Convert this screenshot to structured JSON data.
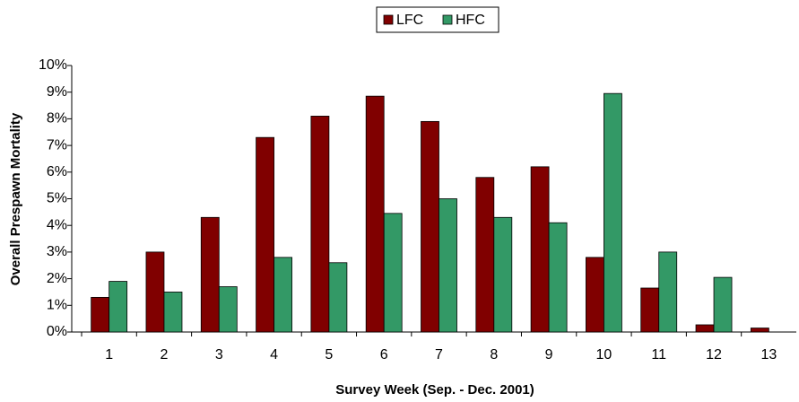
{
  "chart_data": {
    "type": "bar",
    "categories": [
      "1",
      "2",
      "3",
      "4",
      "5",
      "6",
      "7",
      "8",
      "9",
      "10",
      "11",
      "12",
      "13"
    ],
    "series": [
      {
        "name": "LFC",
        "color": "#800000",
        "values": [
          1.3,
          3.0,
          4.3,
          7.3,
          8.1,
          8.85,
          7.9,
          5.8,
          6.2,
          2.8,
          1.65,
          0.27,
          0.15
        ]
      },
      {
        "name": "HFC",
        "color": "#339966",
        "values": [
          1.9,
          1.5,
          1.7,
          2.8,
          2.6,
          4.45,
          5.0,
          4.3,
          4.1,
          8.95,
          3.0,
          2.05,
          null
        ]
      }
    ],
    "ylim": [
      0,
      10
    ],
    "yticks": [
      {
        "value": 0,
        "label": "0%"
      },
      {
        "value": 1,
        "label": "1%"
      },
      {
        "value": 2,
        "label": "2%"
      },
      {
        "value": 3,
        "label": "3%"
      },
      {
        "value": 4,
        "label": "4%"
      },
      {
        "value": 5,
        "label": "5%"
      },
      {
        "value": 6,
        "label": "6%"
      },
      {
        "value": 7,
        "label": "7%"
      },
      {
        "value": 8,
        "label": "8%"
      },
      {
        "value": 9,
        "label": "9%"
      },
      {
        "value": 10,
        "label": "10%"
      }
    ],
    "xlabel": "Survey Week (Sep. - Dec. 2001)",
    "ylabel": "Overall Prespawn Mortality",
    "legend": "top"
  }
}
